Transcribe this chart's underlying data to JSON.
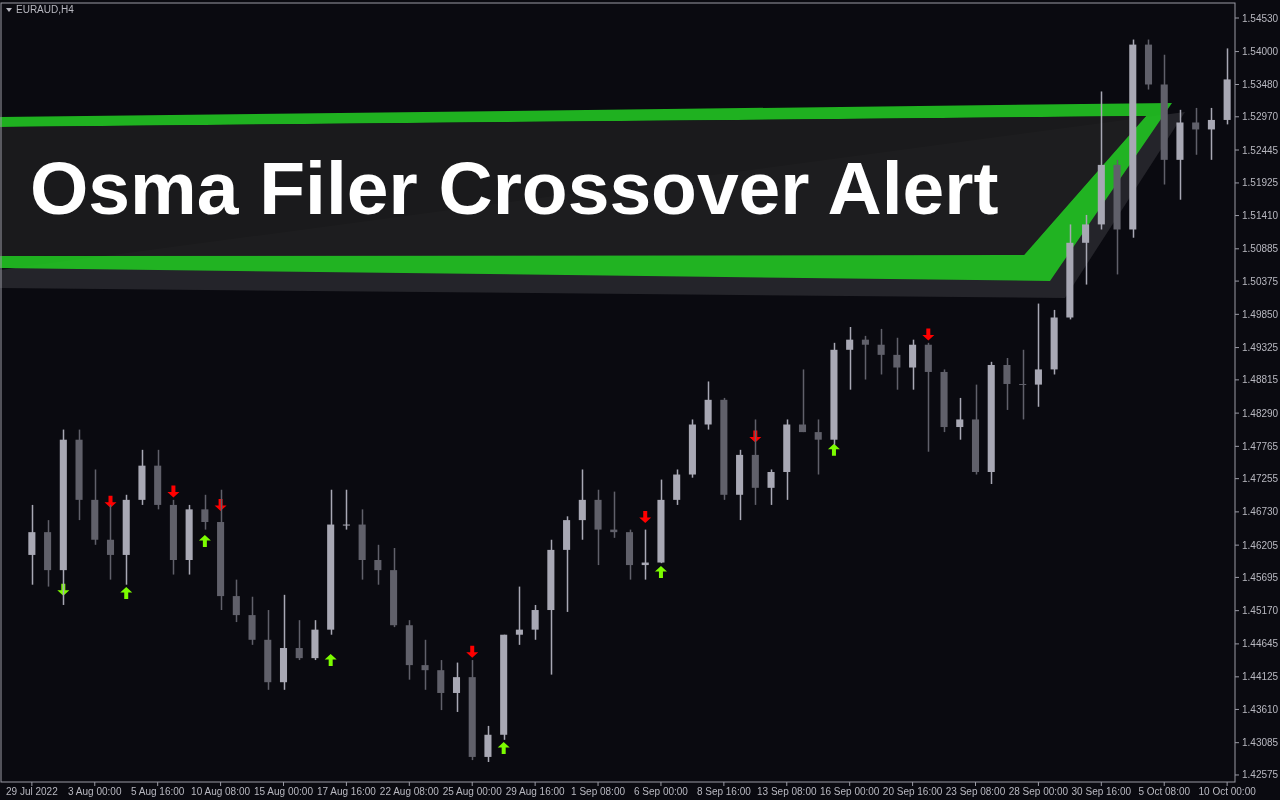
{
  "chart_data": {
    "type": "candlestick",
    "title": "Osma Filer Crossover Alert",
    "subtitle": "EURAUD,H4",
    "categories": [
      "29 Jul 2022",
      null,
      null,
      null,
      "3 Aug 00:00",
      null,
      null,
      null,
      "5 Aug 16:00",
      null,
      null,
      null,
      "10 Aug 08:00",
      null,
      null,
      null,
      "15 Aug 00:00",
      null,
      null,
      null,
      "17 Aug 16:00",
      null,
      null,
      null,
      "22 Aug 08:00",
      null,
      null,
      null,
      "25 Aug 00:00",
      null,
      null,
      null,
      "29 Aug 16:00",
      null,
      null,
      null,
      "1 Sep 08:00",
      null,
      null,
      null,
      "6 Sep 00:00",
      null,
      null,
      null,
      "8 Sep 16:00",
      null,
      null,
      null,
      "13 Sep 08:00",
      null,
      null,
      null,
      "16 Sep 00:00",
      null,
      null,
      null,
      "20 Sep 16:00",
      null,
      null,
      null,
      "23 Sep 08:00",
      null,
      null,
      null,
      "28 Sep 00:00",
      null,
      null,
      null,
      "30 Sep 16:00",
      null,
      null,
      null,
      "5 Oct 08:00",
      null,
      null,
      null,
      "10 Oct 00:00"
    ],
    "ohlc": [
      [
        1.4605,
        1.4684,
        1.4558,
        1.4641
      ],
      [
        1.4641,
        1.466,
        1.4555,
        1.4581
      ],
      [
        1.4581,
        1.4803,
        1.4526,
        1.4787
      ],
      [
        1.4787,
        1.4803,
        1.466,
        1.4692
      ],
      [
        1.4692,
        1.474,
        1.4621,
        1.4629
      ],
      [
        1.4629,
        1.4684,
        1.4566,
        1.4605
      ],
      [
        1.4605,
        1.47,
        1.4558,
        1.4692
      ],
      [
        1.4692,
        1.4771,
        1.4684,
        1.4746
      ],
      [
        1.4746,
        1.4771,
        1.4677,
        1.4684
      ],
      [
        1.4684,
        1.4692,
        1.4574,
        1.4597
      ],
      [
        1.4597,
        1.4684,
        1.4574,
        1.4677
      ],
      [
        1.4677,
        1.47,
        1.4645,
        1.4657
      ],
      [
        1.4657,
        1.4708,
        1.4518,
        1.454
      ],
      [
        1.454,
        1.4566,
        1.4499,
        1.451
      ],
      [
        1.451,
        1.4539,
        1.4463,
        1.4471
      ],
      [
        1.4471,
        1.4518,
        1.4392,
        1.4404
      ],
      [
        1.4404,
        1.4542,
        1.4392,
        1.4458
      ],
      [
        1.4458,
        1.4502,
        1.4439,
        1.4442
      ],
      [
        1.4442,
        1.4502,
        1.4439,
        1.4487
      ],
      [
        1.4487,
        1.4708,
        1.4479,
        1.4653
      ],
      [
        1.4653,
        1.4708,
        1.4645,
        1.4653
      ],
      [
        1.4653,
        1.4677,
        1.4566,
        1.4597
      ],
      [
        1.4597,
        1.4621,
        1.4558,
        1.4581
      ],
      [
        1.4581,
        1.4616,
        1.4491,
        1.4494
      ],
      [
        1.4494,
        1.4502,
        1.4408,
        1.4431
      ],
      [
        1.4431,
        1.4471,
        1.4392,
        1.4423
      ],
      [
        1.4423,
        1.4439,
        1.436,
        1.4387
      ],
      [
        1.4387,
        1.4435,
        1.4357,
        1.4412
      ],
      [
        1.4412,
        1.4439,
        1.4281,
        1.4286
      ],
      [
        1.4286,
        1.4335,
        1.4278,
        1.4321
      ],
      [
        1.4321,
        1.4479,
        1.4313,
        1.4479
      ],
      [
        1.4479,
        1.4555,
        1.4463,
        1.4487
      ],
      [
        1.4487,
        1.4526,
        1.4471,
        1.4518
      ],
      [
        1.4518,
        1.4629,
        1.4416,
        1.4613
      ],
      [
        1.4613,
        1.4666,
        1.4515,
        1.466
      ],
      [
        1.466,
        1.474,
        1.4629,
        1.4692
      ],
      [
        1.4692,
        1.4708,
        1.4589,
        1.4645
      ],
      [
        1.4645,
        1.4705,
        1.4632,
        1.4641
      ],
      [
        1.4641,
        1.4645,
        1.4566,
        1.4589
      ],
      [
        1.4589,
        1.4645,
        1.4566,
        1.4593
      ],
      [
        1.4593,
        1.4724,
        1.4592,
        1.4692
      ],
      [
        1.4692,
        1.474,
        1.4684,
        1.4732
      ],
      [
        1.4732,
        1.4819,
        1.4727,
        1.4811
      ],
      [
        1.4811,
        1.4879,
        1.4803,
        1.485
      ],
      [
        1.485,
        1.4853,
        1.4692,
        1.47
      ],
      [
        1.47,
        1.4771,
        1.466,
        1.4763
      ],
      [
        1.4763,
        1.4819,
        1.4684,
        1.4711
      ],
      [
        1.4711,
        1.474,
        1.4684,
        1.4736
      ],
      [
        1.4736,
        1.4819,
        1.4692,
        1.4811
      ],
      [
        1.4811,
        1.4898,
        1.4799,
        1.4799
      ],
      [
        1.4799,
        1.4819,
        1.4732,
        1.4787
      ],
      [
        1.4787,
        1.494,
        1.4779,
        1.4929
      ],
      [
        1.4929,
        1.4965,
        1.4866,
        1.4945
      ],
      [
        1.4945,
        1.4951,
        1.4882,
        1.4937
      ],
      [
        1.4937,
        1.4962,
        1.489,
        1.4921
      ],
      [
        1.4921,
        1.4948,
        1.4866,
        1.4901
      ],
      [
        1.4901,
        1.4945,
        1.4866,
        1.4937
      ],
      [
        1.4937,
        1.494,
        1.4768,
        1.4894
      ],
      [
        1.4894,
        1.4898,
        1.4799,
        1.4807
      ],
      [
        1.4807,
        1.4853,
        1.4787,
        1.4819
      ],
      [
        1.4819,
        1.4874,
        1.4732,
        1.4736
      ],
      [
        1.4736,
        1.491,
        1.4717,
        1.4905
      ],
      [
        1.4905,
        1.4916,
        1.4834,
        1.4875
      ],
      [
        1.4875,
        1.4929,
        1.4819,
        1.4874
      ],
      [
        1.4874,
        1.5002,
        1.4839,
        1.4898
      ],
      [
        1.4898,
        1.4992,
        1.489,
        1.498
      ],
      [
        1.498,
        1.5127,
        1.4977,
        1.5098
      ],
      [
        1.5098,
        1.5142,
        1.5032,
        1.5127
      ],
      [
        1.5127,
        1.5337,
        1.5119,
        1.5221
      ],
      [
        1.5221,
        1.5229,
        1.5048,
        1.5119
      ],
      [
        1.5119,
        1.5419,
        1.5106,
        1.5411
      ],
      [
        1.5411,
        1.5419,
        1.534,
        1.5348
      ],
      [
        1.5348,
        1.5395,
        1.519,
        1.5229
      ],
      [
        1.5229,
        1.5308,
        1.5166,
        1.5288
      ],
      [
        1.5288,
        1.5311,
        1.5237,
        1.5277
      ],
      [
        1.5277,
        1.5311,
        1.5229,
        1.5292
      ],
      [
        1.5292,
        1.5405,
        1.5285,
        1.5356
      ]
    ],
    "series": [
      {
        "type": "scatter",
        "color": "#7cfc00",
        "marker": "triangle",
        "values": [
          null,
          null,
          1.455,
          null,
          null,
          null,
          1.4545,
          null,
          null,
          null,
          null,
          1.4627,
          null,
          null,
          null,
          null,
          null,
          null,
          null,
          1.4439,
          null,
          null,
          null,
          null,
          null,
          null,
          null,
          null,
          null,
          null,
          1.43,
          null,
          null,
          null,
          null,
          null,
          null,
          null,
          null,
          null,
          1.4578,
          null,
          null,
          null,
          null,
          null,
          null,
          null,
          null,
          null,
          null,
          1.4771,
          null,
          null,
          null,
          null,
          null,
          null,
          null,
          null,
          null,
          null,
          null,
          null,
          null,
          null,
          null,
          null,
          null,
          null,
          null,
          null,
          null,
          null,
          null,
          null,
          null
        ]
      },
      {
        "type": "scatter",
        "color": "#ff0000",
        "marker": "triangle",
        "values": [
          null,
          null,
          null,
          null,
          null,
          1.4689,
          null,
          null,
          null,
          1.4705,
          null,
          null,
          1.4684,
          null,
          null,
          null,
          null,
          null,
          null,
          null,
          null,
          null,
          null,
          null,
          null,
          null,
          null,
          null,
          1.4452,
          null,
          null,
          null,
          null,
          null,
          null,
          null,
          null,
          null,
          null,
          1.4665,
          null,
          null,
          null,
          null,
          null,
          null,
          1.4792,
          null,
          null,
          null,
          null,
          null,
          null,
          null,
          null,
          null,
          null,
          1.4953,
          null,
          null,
          null,
          null,
          null,
          null,
          null,
          null,
          null,
          null,
          null,
          null,
          null,
          null,
          null,
          null,
          null,
          null,
          null
        ]
      }
    ],
    "ylim": [
      1.42464,
      1.54767
    ],
    "yticks": [
      1.42575,
      1.43085,
      {
        "value": 1.4361,
        "label": "1.43610"
      },
      1.44125,
      1.44645,
      {
        "value": 1.4517,
        "label": "1.45170"
      },
      1.45695,
      1.46205,
      {
        "value": 1.4673,
        "label": "1.46730"
      },
      1.47255,
      1.47765,
      {
        "value": 1.4829,
        "label": "1.48290"
      },
      1.48815,
      1.49325,
      {
        "value": 1.4985,
        "label": "1.49850"
      },
      1.50375,
      1.50885,
      {
        "value": 1.5141,
        "label": "1.51410"
      },
      1.51925,
      1.52445,
      {
        "value": 1.5297,
        "label": "1.52970"
      },
      {
        "value": 1.5348,
        "label": "1.53480"
      },
      {
        "value": 1.54,
        "label": "1.54000"
      },
      {
        "value": 1.5453,
        "label": "1.54530"
      }
    ]
  }
}
